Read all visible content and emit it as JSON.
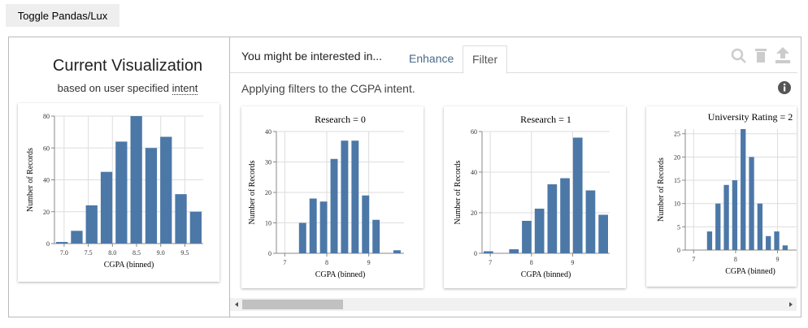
{
  "ui": {
    "toggle": "Toggle Pandas/Lux",
    "current_title": "Current Visualization",
    "current_subtitle": "based on user specified",
    "intent_word": "intent",
    "prompt": "You might be interested in...",
    "tabs": [
      "Enhance",
      "Filter"
    ],
    "active_tab": 1,
    "filter_message": "Applying filters to the CGPA intent."
  },
  "chart_data": [
    {
      "type": "histogram",
      "xlabel": "CGPA (binned)",
      "ylabel": "Number of Records",
      "color": "#4c78a8",
      "grid": true,
      "bins": [
        6.8,
        7.108,
        7.416,
        7.724,
        8.032,
        8.34,
        8.648,
        8.956,
        9.264,
        9.572,
        9.88
      ],
      "values": [
        1,
        8,
        24,
        45,
        64,
        80,
        60,
        67,
        31,
        20
      ],
      "xlim": [
        6.8,
        9.88
      ],
      "ylim": [
        0,
        80
      ],
      "xticks": [
        {
          "value": 7,
          "label": "7.0"
        },
        7.5,
        {
          "value": 8,
          "label": "8.0"
        },
        8.5,
        {
          "value": 9,
          "label": "9.0"
        },
        9.5
      ],
      "yticks": [
        0,
        20,
        40,
        60,
        80
      ]
    },
    {
      "type": "histogram",
      "title": "Research = 0",
      "xlabel": "CGPA (binned)",
      "ylabel": "Number of Records",
      "color": "#4c78a8",
      "grid": true,
      "bins": [
        6.8,
        7.05,
        7.3,
        7.55,
        7.8,
        8.05,
        8.3,
        8.55,
        8.8,
        9.05,
        9.3,
        9.55,
        9.8
      ],
      "values": [
        0,
        0,
        10,
        18,
        17,
        31,
        37,
        37,
        19,
        11,
        0,
        1
      ],
      "xlim": [
        6.8,
        9.84
      ],
      "ylim": [
        0,
        40
      ],
      "xticks": [
        7,
        8,
        9
      ],
      "yticks": [
        0,
        10,
        20,
        30,
        40
      ]
    },
    {
      "type": "histogram",
      "title": "Research = 1",
      "xlabel": "CGPA (binned)",
      "ylabel": "Number of Records",
      "color": "#4c78a8",
      "grid": true,
      "bins": [
        6.8,
        7.11,
        7.42,
        7.73,
        8.04,
        8.35,
        8.66,
        8.97,
        9.28,
        9.59,
        9.9
      ],
      "values": [
        1,
        0,
        2,
        16,
        22,
        34,
        37,
        57,
        31,
        19
      ],
      "xlim": [
        6.8,
        9.9
      ],
      "ylim": [
        0,
        60
      ],
      "xticks": [
        7,
        8,
        9
      ],
      "yticks": [
        0,
        20,
        40,
        60
      ]
    },
    {
      "type": "histogram",
      "title": "University Rating = 2",
      "xlabel": "CGPA (binned)",
      "ylabel": "Number of Records",
      "color": "#4c78a8",
      "grid": true,
      "bins": [
        7.28,
        7.48,
        7.68,
        7.88,
        8.08,
        8.28,
        8.48,
        8.68,
        8.88,
        9.08,
        9.28
      ],
      "values": [
        4,
        10,
        14,
        15,
        26,
        20,
        10,
        3,
        4,
        1
      ],
      "xlim": [
        6.8,
        9.9
      ],
      "ylim": [
        0,
        26
      ],
      "xticks": [
        7,
        8,
        9
      ],
      "yticks": [
        0,
        5,
        10,
        15,
        20,
        25
      ]
    }
  ]
}
